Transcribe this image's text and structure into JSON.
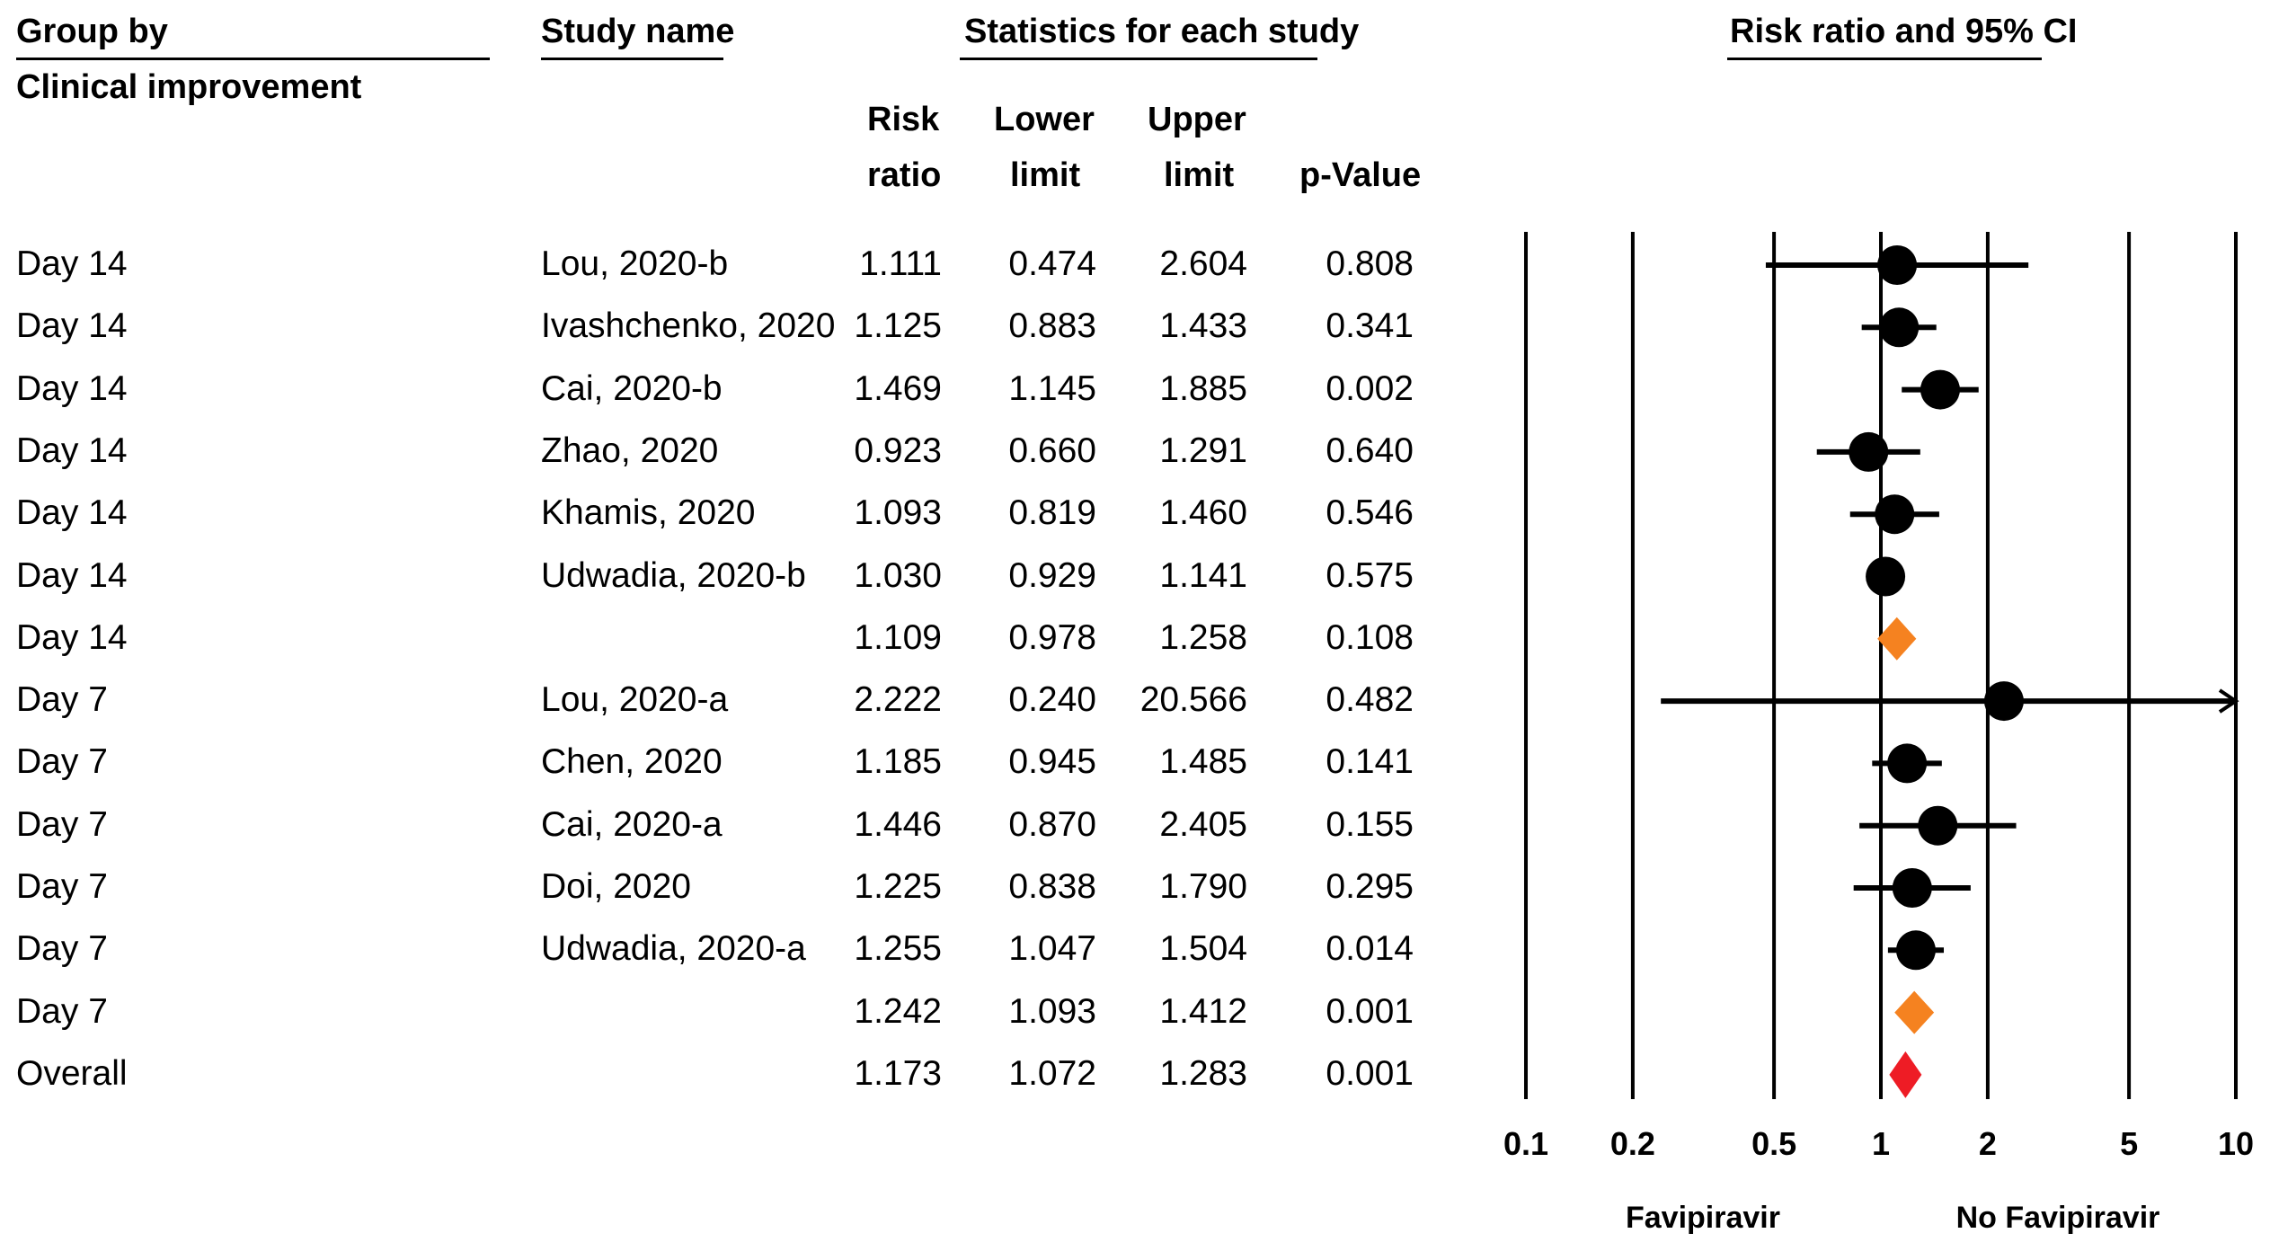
{
  "headers": {
    "group_by": "Group by",
    "group_sub": "Clinical improvement",
    "study_name": "Study name",
    "stats": "Statistics for each study",
    "risk_ratio_1": "Risk",
    "risk_ratio_2": "ratio",
    "lower_1": "Lower",
    "lower_2": "limit",
    "upper_1": "Upper",
    "upper_2": "limit",
    "pvalue": "p-Value",
    "plot": "Risk ratio and 95% CI"
  },
  "chart_data": {
    "type": "forest",
    "title": "Risk ratio and 95% CI",
    "x_scale": "log",
    "xlim": [
      0.1,
      10
    ],
    "x_ticks": [
      0.1,
      0.2,
      0.5,
      1,
      2,
      5,
      10
    ],
    "x_tick_labels": [
      "0.1",
      "0.2",
      "0.5",
      "1",
      "2",
      "5",
      "10"
    ],
    "label_left": "Favipiravir",
    "label_right": "No Favipiravir",
    "colors": {
      "study": "#000000",
      "subtotal": "#f58220",
      "overall": "#ee1c25"
    },
    "rows": [
      {
        "group": "Day 14",
        "study": "Lou, 2020-b",
        "rr": "1.111",
        "lower": "0.474",
        "upper": "2.604",
        "p": "0.808",
        "kind": "study",
        "marker_size": 2
      },
      {
        "group": "Day 14",
        "study": "Ivashchenko, 2020",
        "rr": "1.125",
        "lower": "0.883",
        "upper": "1.433",
        "p": "0.341",
        "kind": "study",
        "marker_size": 2
      },
      {
        "group": "Day 14",
        "study": "Cai, 2020-b",
        "rr": "1.469",
        "lower": "1.145",
        "upper": "1.885",
        "p": "0.002",
        "kind": "study",
        "marker_size": 2
      },
      {
        "group": "Day 14",
        "study": "Zhao, 2020",
        "rr": "0.923",
        "lower": "0.660",
        "upper": "1.291",
        "p": "0.640",
        "kind": "study",
        "marker_size": 2
      },
      {
        "group": "Day 14",
        "study": "Khamis, 2020",
        "rr": "1.093",
        "lower": "0.819",
        "upper": "1.460",
        "p": "0.546",
        "kind": "study",
        "marker_size": 2
      },
      {
        "group": "Day 14",
        "study": "Udwadia, 2020-b",
        "rr": "1.030",
        "lower": "0.929",
        "upper": "1.141",
        "p": "0.575",
        "kind": "study",
        "marker_size": 2
      },
      {
        "group": "Day 14",
        "study": "",
        "rr": "1.109",
        "lower": "0.978",
        "upper": "1.258",
        "p": "0.108",
        "kind": "subtotal"
      },
      {
        "group": "Day 7",
        "study": "Lou, 2020-a",
        "rr": "2.222",
        "lower": "0.240",
        "upper": "20.566",
        "p": "0.482",
        "kind": "study",
        "marker_size": 2,
        "arrow_right": true
      },
      {
        "group": "Day 7",
        "study": "Chen, 2020",
        "rr": "1.185",
        "lower": "0.945",
        "upper": "1.485",
        "p": "0.141",
        "kind": "study",
        "marker_size": 2
      },
      {
        "group": "Day 7",
        "study": "Cai, 2020-a",
        "rr": "1.446",
        "lower": "0.870",
        "upper": "2.405",
        "p": "0.155",
        "kind": "study",
        "marker_size": 2
      },
      {
        "group": "Day 7",
        "study": "Doi, 2020",
        "rr": "1.225",
        "lower": "0.838",
        "upper": "1.790",
        "p": "0.295",
        "kind": "study",
        "marker_size": 2
      },
      {
        "group": "Day 7",
        "study": "Udwadia, 2020-a",
        "rr": "1.255",
        "lower": "1.047",
        "upper": "1.504",
        "p": "0.014",
        "kind": "study",
        "marker_size": 2
      },
      {
        "group": "Day 7",
        "study": "",
        "rr": "1.242",
        "lower": "1.093",
        "upper": "1.412",
        "p": "0.001",
        "kind": "subtotal"
      },
      {
        "group": "Overall",
        "study": "",
        "rr": "1.173",
        "lower": "1.072",
        "upper": "1.283",
        "p": "0.001",
        "kind": "overall"
      }
    ]
  }
}
